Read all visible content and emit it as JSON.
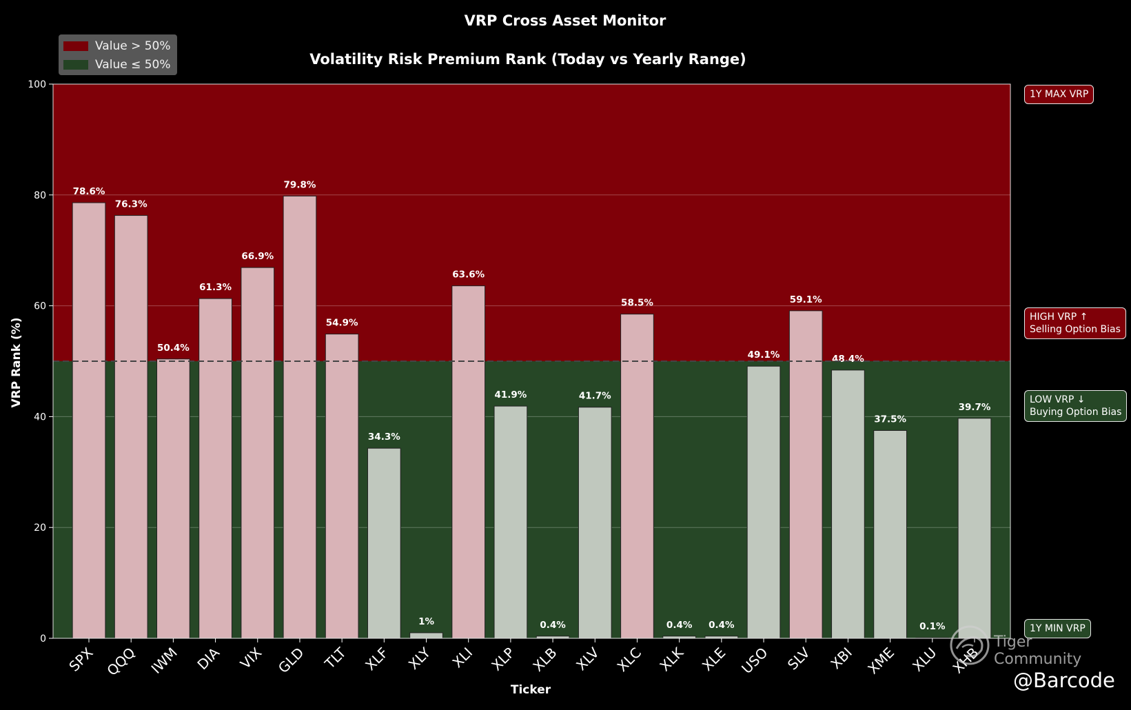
{
  "title": "VRP Cross Asset Monitor",
  "subtitle": "Volatility Risk Premium Rank (Today vs Yearly Range)",
  "legend": {
    "items": [
      {
        "label": "Value > 50%",
        "color": "#7f0008"
      },
      {
        "label": "Value ≤ 50%",
        "color": "#264726"
      }
    ]
  },
  "side_labels": {
    "max": "1Y MAX VRP",
    "high_line1": "HIGH VRP ↑",
    "high_line2": "Selling Option Bias",
    "low_line1": "LOW VRP ↓",
    "low_line2": "Buying Option Bias",
    "min": "1Y MIN VRP"
  },
  "watermark": {
    "community": "Tiger Community",
    "handle": "@Barcode"
  },
  "colors": {
    "high_zone": "#7f0008",
    "low_zone": "#264726",
    "bar_high": "#d9b3b7",
    "bar_low": "#c0c8be"
  },
  "chart_data": {
    "type": "bar",
    "xlabel": "Ticker",
    "ylabel": "VRP Rank (%)",
    "ylim": [
      0,
      100
    ],
    "yticks": [
      0,
      20,
      40,
      60,
      80,
      100
    ],
    "threshold": 50,
    "grid": true,
    "legend_position": "top-left",
    "categories": [
      "SPX",
      "QQQ",
      "IWM",
      "DIA",
      "VIX",
      "GLD",
      "TLT",
      "XLF",
      "XLY",
      "XLI",
      "XLP",
      "XLB",
      "XLV",
      "XLC",
      "XLK",
      "XLE",
      "USO",
      "SLV",
      "XBI",
      "XME",
      "XLU",
      "XHB"
    ],
    "values": [
      78.6,
      76.3,
      50.4,
      61.3,
      66.9,
      79.8,
      54.9,
      34.3,
      1,
      63.6,
      41.9,
      0.4,
      41.7,
      58.5,
      0.4,
      0.4,
      49.1,
      59.1,
      48.4,
      37.5,
      0.1,
      39.7
    ],
    "labels": [
      "78.6%",
      "76.3%",
      "50.4%",
      "61.3%",
      "66.9%",
      "79.8%",
      "54.9%",
      "34.3%",
      "1%",
      "63.6%",
      "41.9%",
      "0.4%",
      "41.7%",
      "58.5%",
      "0.4%",
      "0.4%",
      "49.1%",
      "59.1%",
      "48.4%",
      "37.5%",
      "0.1%",
      "39.7%"
    ]
  }
}
